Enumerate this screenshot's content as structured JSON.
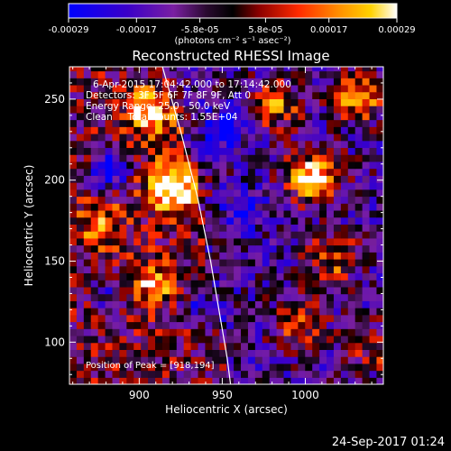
{
  "chart_data": {
    "type": "heatmap",
    "title": "Reconstructed RHESSI Image",
    "xlabel": "Heliocentric X (arcsec)",
    "ylabel": "Heliocentric Y (arcsec)",
    "xlim": [
      858,
      1047
    ],
    "ylim": [
      74,
      270
    ],
    "x_ticks": [
      900,
      950,
      1000
    ],
    "y_ticks": [
      100,
      150,
      200,
      250
    ],
    "colorbar": {
      "min": -0.00029,
      "max": 0.00029,
      "tick_labels": [
        "-0.00029",
        "-0.00017",
        "-5.8e-05",
        "5.8e-05",
        "0.00017",
        "0.00029"
      ],
      "unit_label": "(photons cm⁻² s⁻¹ asec⁻²)",
      "colors": [
        "#0000ff",
        "#4b0082",
        "#7a1fa2",
        "#000000",
        "#8b0000",
        "#ff2a00",
        "#ff8c00",
        "#ffd200",
        "#ffffff"
      ]
    },
    "annotations": [
      "6-Apr-2015 17:04:42.000 to 17:14:42.000",
      "Detectors: 3F 5F 6F 7F 8F 9F, Att 0",
      "Energy Range: 25.0 - 50.0 keV",
      "Clean     Total counts: 1.55E+04"
    ],
    "peak_label": "Position of Peak = [918,194]",
    "peak": {
      "x": 918,
      "y": 194
    },
    "limb_curve": [
      [
        914,
        270
      ],
      [
        925,
        230
      ],
      [
        935,
        190
      ],
      [
        943,
        150
      ],
      [
        948,
        120
      ],
      [
        953,
        90
      ],
      [
        955,
        74
      ]
    ],
    "hot_spots": [
      {
        "x": 918,
        "y": 194,
        "strength": 1.0
      },
      {
        "x": 1003,
        "y": 200,
        "strength": 0.95
      },
      {
        "x": 905,
        "y": 240,
        "strength": 0.7
      },
      {
        "x": 1030,
        "y": 250,
        "strength": 0.75
      },
      {
        "x": 980,
        "y": 245,
        "strength": 0.6
      },
      {
        "x": 905,
        "y": 135,
        "strength": 0.55
      },
      {
        "x": 1015,
        "y": 150,
        "strength": 0.6
      },
      {
        "x": 995,
        "y": 110,
        "strength": 0.5
      },
      {
        "x": 875,
        "y": 170,
        "strength": 0.45
      },
      {
        "x": 1040,
        "y": 95,
        "strength": 0.4
      }
    ],
    "cold_spots": [
      {
        "x": 880,
        "y": 205,
        "strength": 0.9
      },
      {
        "x": 950,
        "y": 230,
        "strength": 0.8
      },
      {
        "x": 960,
        "y": 180,
        "strength": 0.6
      },
      {
        "x": 935,
        "y": 120,
        "strength": 0.5
      },
      {
        "x": 880,
        "y": 130,
        "strength": 0.45
      }
    ]
  },
  "footer": {
    "timestamp": "24-Sep-2017 01:24"
  }
}
